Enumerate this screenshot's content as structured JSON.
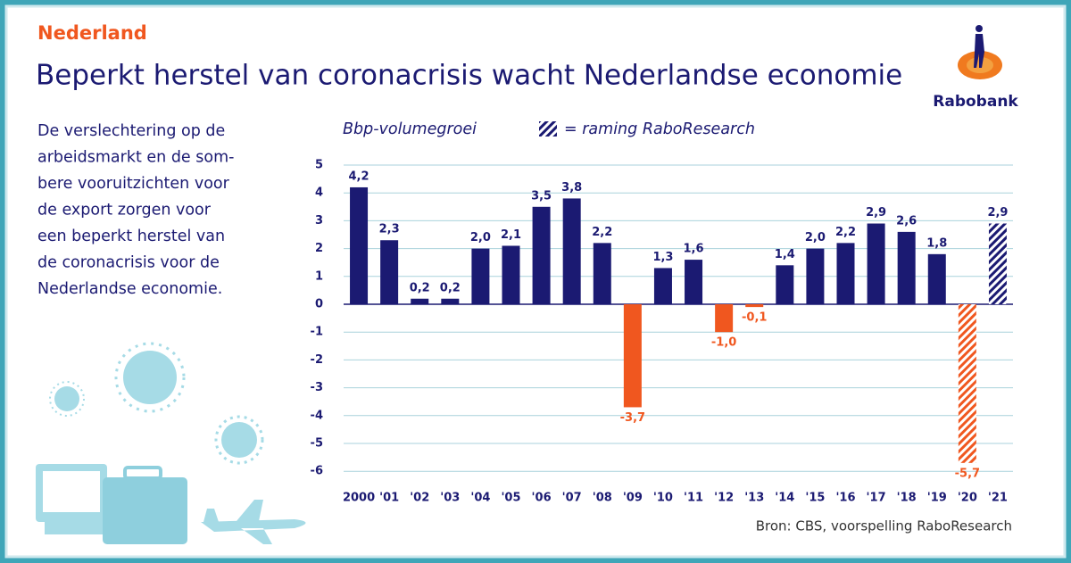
{
  "header": {
    "kicker": "Nederland",
    "title": "Beperkt herstel van coronacrisis wacht Nederlandse economie",
    "brand": "Rabobank"
  },
  "intro": [
    "De verslechtering op de",
    "arbeidsmarkt en de som-",
    "bere vooruitzichten voor",
    "de export zorgen voor",
    "een beperkt herstel van",
    "de coronacrisis voor de",
    "Nederlandse economie."
  ],
  "chart_data": {
    "type": "bar",
    "title": "Bbp-volumegroei",
    "legend": "= raming RaboResearch",
    "source": "Bron: CBS, voorspelling RaboResearch",
    "categories": [
      "2000",
      "'01",
      "'02",
      "'03",
      "'04",
      "'05",
      "'06",
      "'07",
      "'08",
      "'09",
      "'10",
      "'11",
      "'12",
      "'13",
      "'14",
      "'15",
      "'16",
      "'17",
      "'18",
      "'19",
      "'20",
      "'21"
    ],
    "values": [
      4.2,
      2.3,
      0.2,
      0.2,
      2.0,
      2.1,
      3.5,
      3.8,
      2.2,
      -3.7,
      1.3,
      1.6,
      -1.0,
      -0.1,
      1.4,
      2.0,
      2.2,
      2.9,
      2.6,
      1.8,
      -5.7,
      2.9
    ],
    "value_labels": [
      "4,2",
      "2,3",
      "0,2",
      "0,2",
      "2,0",
      "2,1",
      "3,5",
      "3,8",
      "2,2",
      "-3,7",
      "1,3",
      "1,6",
      "-1,0",
      "-0,1",
      "1,4",
      "2,0",
      "2,2",
      "2,9",
      "2,6",
      "1,8",
      "-5,7",
      "2,9"
    ],
    "hatched": [
      false,
      false,
      false,
      false,
      false,
      false,
      false,
      false,
      false,
      false,
      false,
      false,
      false,
      false,
      false,
      false,
      false,
      false,
      false,
      false,
      true,
      true
    ],
    "color": "#1b1a72",
    "negative_color": "#f0571f",
    "ylim": [
      -6.5,
      5.5
    ],
    "yticks": [
      5,
      4,
      3,
      2,
      1,
      0,
      -1,
      -2,
      -3,
      -4,
      -5,
      -6
    ],
    "grid": true
  }
}
